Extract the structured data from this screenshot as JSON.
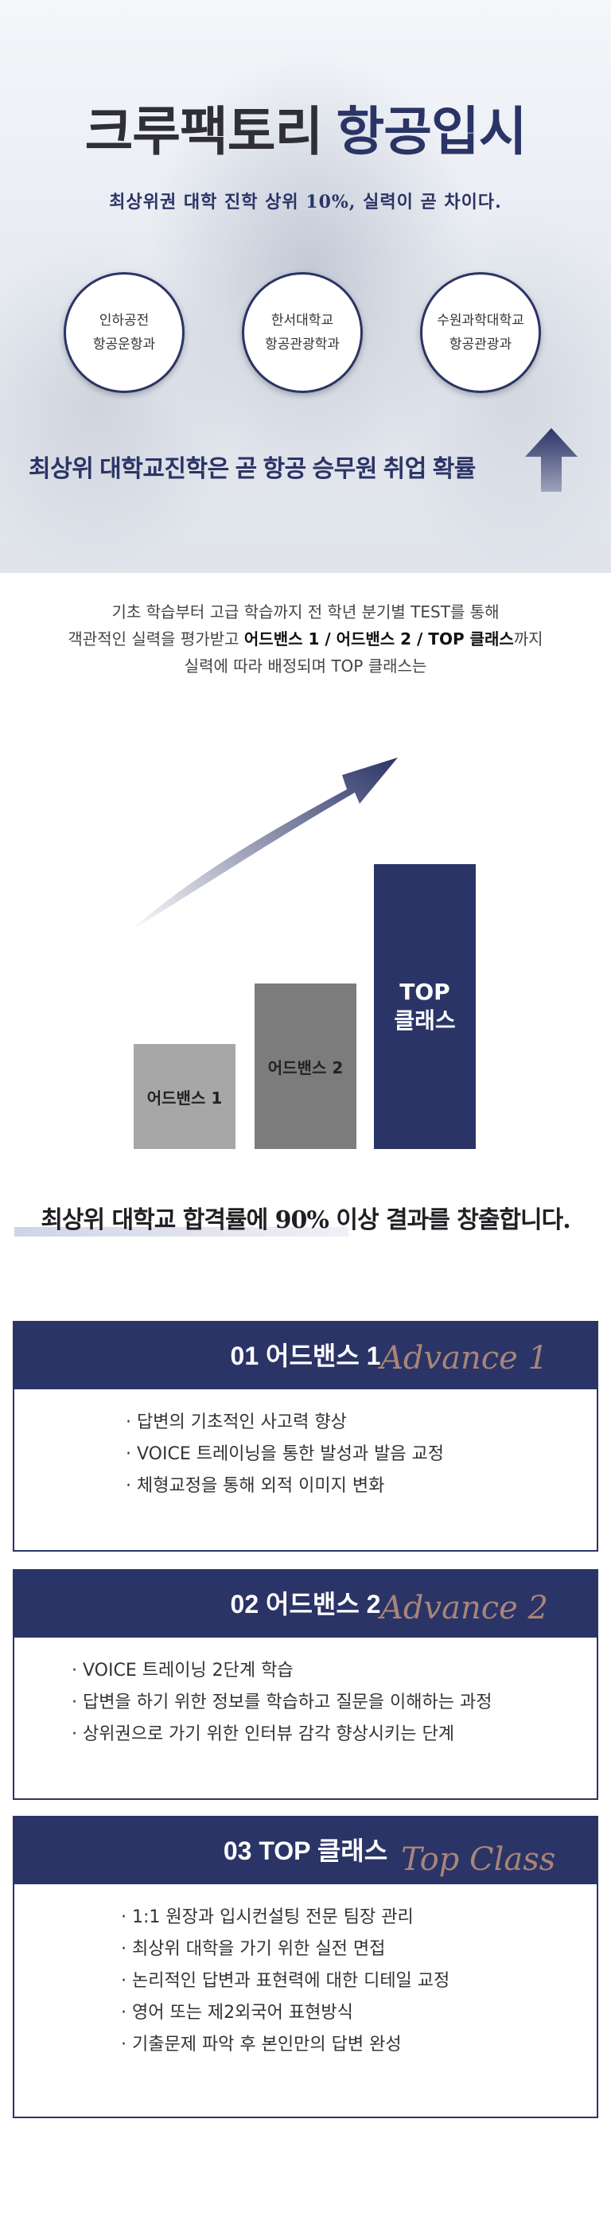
{
  "hero": {
    "title_part1": "크루팩토리",
    "title_part2": "항공입시",
    "subtitle": "최상위권 대학 진학 상위 10%, 실력이 곧 차이다.",
    "circles": [
      {
        "line1": "인하공전",
        "line2": "항공운항과"
      },
      {
        "line1": "한서대학교",
        "line2": "항공관광학과"
      },
      {
        "line1": "수원과학대학교",
        "line2": "항공관광과"
      }
    ],
    "bottom_text": "최상위 대학교진학은 곧 항공 승무원 취업 확률",
    "arrow_icon": "up-arrow-icon"
  },
  "intro": {
    "line1": "기초 학습부터 고급 학습까지 전 학년 분기별 TEST를 통해",
    "line2_pre": "객관적인 실력을 평가받고 ",
    "line2_bold": "어드밴스 1 / 어드밴스 2 / TOP 클래스",
    "line2_post": "까지",
    "line3": "실력에 따라 배정되며 TOP 클래스는"
  },
  "chart_data": {
    "type": "bar",
    "categories": [
      "어드밴스 1",
      "어드밴스 2",
      "TOP 클래스"
    ],
    "values": [
      1,
      2,
      3
    ],
    "colors": [
      "#a7a7a7",
      "#7c7c7c",
      "#2b3466"
    ],
    "top_label_lines": [
      "TOP",
      "클래스"
    ],
    "title": "",
    "xlabel": "",
    "ylabel": ""
  },
  "headline": "최상위 대학교 합격률에 90% 이상 결과를 창출합니다.",
  "sections": [
    {
      "title": "01 어드밴스 1",
      "script": "Advance 1",
      "items": [
        "· 답변의 기초적인 사고력 향상",
        "· VOICE 트레이닝을 통한 발성과 발음 교정",
        "· 체형교정을 통해 외적 이미지 변화"
      ]
    },
    {
      "title": "02 어드밴스 2",
      "script": "Advance 2",
      "items": [
        "· VOICE 트레이닝 2단계 학습",
        "· 답변을 하기 위한 정보를 학습하고 질문을 이해하는 과정",
        "· 상위권으로 가기 위한 인터뷰 감각 향상시키는 단계"
      ]
    },
    {
      "title": "03 TOP 클래스",
      "script": "Top Class",
      "items": [
        "· 1:1 원장과 입시컨설팅 전문 팀장 관리",
        "· 최상위 대학을 가기 위한 실전 면접",
        "· 논리적인 답변과 표현력에 대한 디테일 교정",
        "· 영어 또는 제2외국어 표현방식",
        "· 기출문제 파악 후 본인만의 답변 완성"
      ]
    }
  ],
  "colors": {
    "navy": "#2b3466",
    "script": "#b08a7a",
    "gray_light": "#a7a7a7",
    "gray_dark": "#7c7c7c"
  }
}
